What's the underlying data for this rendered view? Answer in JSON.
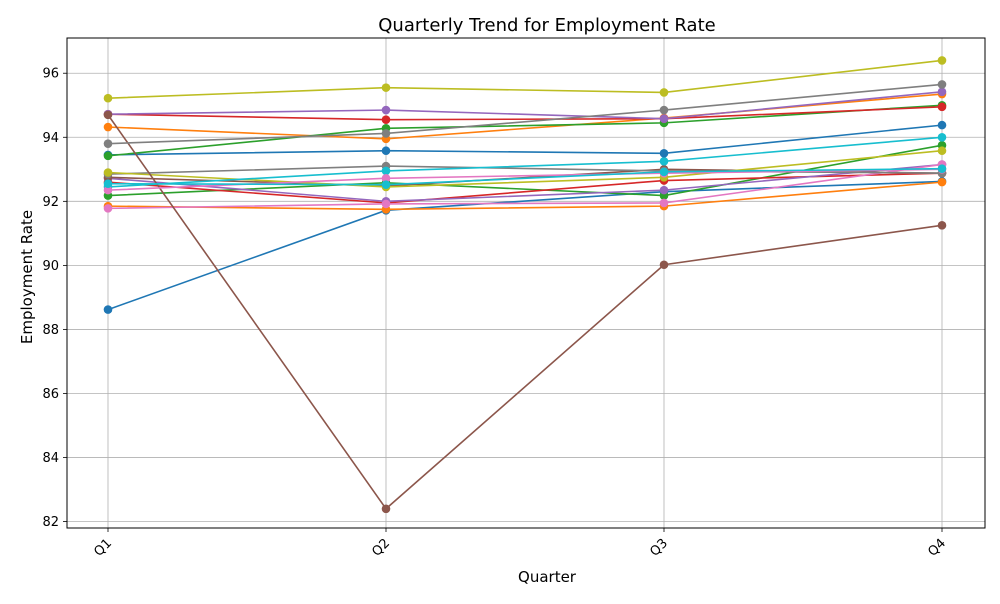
{
  "chart_data": {
    "type": "line",
    "title": "Quarterly Trend for Employment Rate",
    "xlabel": "Quarter",
    "ylabel": "Employment Rate",
    "categories": [
      "Q1",
      "Q2",
      "Q3",
      "Q4"
    ],
    "ylim": [
      81.8,
      97.1
    ],
    "yticks": [
      82,
      84,
      86,
      88,
      90,
      92,
      94,
      96
    ],
    "grid": true,
    "legend": "none",
    "series": [
      {
        "color": "#1f77b4",
        "values": [
          88.62,
          91.72,
          92.3,
          92.62
        ]
      },
      {
        "color": "#ff7f0e",
        "values": [
          91.85,
          91.75,
          91.85,
          92.6
        ]
      },
      {
        "color": "#2ca02c",
        "values": [
          92.18,
          92.58,
          92.18,
          93.75
        ]
      },
      {
        "color": "#d62728",
        "values": [
          92.6,
          91.95,
          92.65,
          92.88
        ]
      },
      {
        "color": "#9467bd",
        "values": [
          92.72,
          92.0,
          92.35,
          93.15
        ]
      },
      {
        "color": "#8c564b",
        "values": [
          92.75,
          92.48,
          93.0,
          92.88
        ]
      },
      {
        "color": "#e377c2",
        "values": [
          91.78,
          91.92,
          91.95,
          93.15
        ]
      },
      {
        "color": "#7f7f7f",
        "values": [
          92.85,
          93.1,
          92.95,
          92.88
        ]
      },
      {
        "color": "#bcbd22",
        "values": [
          92.9,
          92.45,
          92.75,
          93.58
        ]
      },
      {
        "color": "#17becf",
        "values": [
          92.45,
          92.95,
          93.25,
          94.0
        ]
      },
      {
        "color": "#1f77b4",
        "values": [
          93.45,
          93.58,
          93.5,
          94.38
        ]
      },
      {
        "color": "#ff7f0e",
        "values": [
          94.32,
          93.95,
          94.6,
          95.35
        ]
      },
      {
        "color": "#2ca02c",
        "values": [
          93.42,
          94.28,
          94.45,
          95.0
        ]
      },
      {
        "color": "#d62728",
        "values": [
          94.72,
          94.55,
          94.58,
          94.95
        ]
      },
      {
        "color": "#9467bd",
        "values": [
          94.72,
          94.85,
          94.58,
          95.42
        ]
      },
      {
        "color": "#8c564b",
        "values": [
          94.7,
          82.4,
          90.02,
          91.25
        ]
      },
      {
        "color": "#e377c2",
        "values": [
          92.35,
          92.72,
          92.88,
          93.0
        ]
      },
      {
        "color": "#7f7f7f",
        "values": [
          93.8,
          94.12,
          94.85,
          95.65
        ]
      },
      {
        "color": "#bcbd22",
        "values": [
          95.22,
          95.55,
          95.4,
          96.4
        ]
      },
      {
        "color": "#17becf",
        "values": [
          92.55,
          92.52,
          92.92,
          93.02
        ]
      }
    ]
  }
}
